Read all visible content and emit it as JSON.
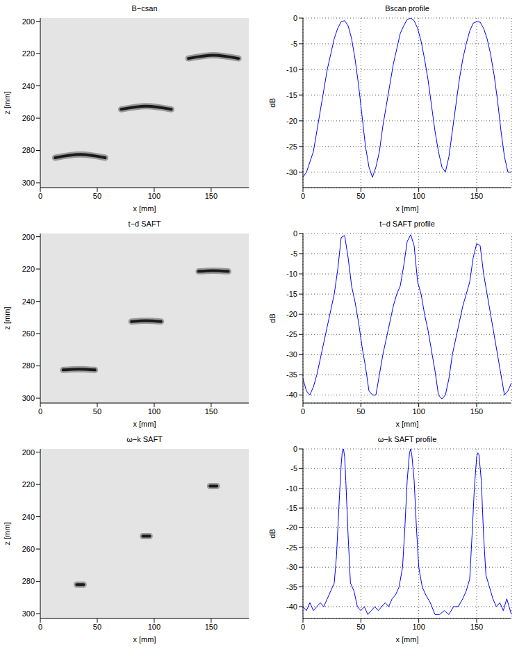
{
  "chart_data": [
    {
      "type": "image",
      "title": "B−csan",
      "x_label": "x [mm]",
      "y_label": "z [mm]",
      "xlim": [
        0,
        183
      ],
      "ylim": [
        198,
        303
      ],
      "xticks": [
        0,
        50,
        100,
        150
      ],
      "yticks": [
        200,
        220,
        240,
        260,
        280,
        300
      ],
      "color": "#1a1a1a",
      "grid": false,
      "reflectors": [
        {
          "x": 35,
          "z": 282.5,
          "half_width": 22,
          "sag": 2
        },
        {
          "x": 93,
          "z": 252.5,
          "half_width": 22,
          "sag": 2
        },
        {
          "x": 152,
          "z": 221,
          "half_width": 22,
          "sag": 2
        }
      ]
    },
    {
      "type": "line",
      "title": "Bscan profile",
      "x_label": "x [mm]",
      "y_label": "dB",
      "xlim": [
        0,
        180
      ],
      "ylim": [
        -33,
        0
      ],
      "xticks": [
        0,
        50,
        100,
        150
      ],
      "yticks": [
        -30,
        -25,
        -20,
        -15,
        -10,
        -5,
        0
      ],
      "grid": true,
      "color": "#0000ff",
      "x": [
        0,
        3,
        6,
        9,
        12,
        15,
        18,
        21,
        24,
        27,
        30,
        33,
        36,
        39,
        42,
        45,
        48,
        51,
        54,
        57,
        60,
        63,
        66,
        69,
        72,
        75,
        78,
        81,
        84,
        87,
        90,
        93,
        96,
        99,
        102,
        105,
        108,
        111,
        114,
        117,
        120,
        123,
        126,
        129,
        132,
        135,
        138,
        141,
        144,
        147,
        150,
        153,
        156,
        159,
        162,
        165,
        168,
        171,
        174,
        177,
        180
      ],
      "values": [
        -31,
        -30,
        -28,
        -26,
        -22,
        -18,
        -14,
        -10,
        -7,
        -4,
        -2,
        -0.7,
        -0.5,
        -1.5,
        -4,
        -8,
        -13,
        -19,
        -25,
        -29,
        -31,
        -29,
        -26,
        -21,
        -17,
        -13,
        -9,
        -6,
        -3,
        -1.5,
        -0.3,
        0,
        -0.5,
        -2,
        -4.5,
        -8,
        -12,
        -17,
        -22,
        -26,
        -29,
        -30,
        -27,
        -22,
        -17,
        -12,
        -8,
        -5,
        -2.5,
        -1,
        -0.7,
        -0.8,
        -2,
        -4,
        -7,
        -11,
        -16,
        -22,
        -27,
        -30,
        -30
      ]
    },
    {
      "type": "image",
      "title": "t−d SAFT",
      "x_label": "x [mm]",
      "y_label": "z [mm]",
      "xlim": [
        0,
        183
      ],
      "ylim": [
        198,
        303
      ],
      "xticks": [
        0,
        50,
        100,
        150
      ],
      "yticks": [
        200,
        220,
        240,
        260,
        280,
        300
      ],
      "color": "#1a1a1a",
      "grid": false,
      "reflectors": [
        {
          "x": 34,
          "z": 282,
          "half_width": 14,
          "sag": 0.5
        },
        {
          "x": 93,
          "z": 252,
          "half_width": 13,
          "sag": 0.5
        },
        {
          "x": 152,
          "z": 221,
          "half_width": 13,
          "sag": 0.5
        }
      ]
    },
    {
      "type": "line",
      "title": "t−d SAFT profile",
      "x_label": "x [mm]",
      "y_label": "dB",
      "xlim": [
        0,
        180
      ],
      "ylim": [
        -42,
        0
      ],
      "xticks": [
        0,
        50,
        100,
        150
      ],
      "yticks": [
        -40,
        -35,
        -30,
        -25,
        -20,
        -15,
        -10,
        -5,
        0
      ],
      "grid": true,
      "color": "#0000ff",
      "x": [
        0,
        3,
        6,
        9,
        12,
        15,
        18,
        21,
        24,
        27,
        30,
        33,
        36,
        39,
        42,
        45,
        48,
        51,
        54,
        57,
        60,
        63,
        66,
        69,
        72,
        75,
        78,
        81,
        84,
        87,
        90,
        93,
        96,
        99,
        102,
        105,
        108,
        111,
        114,
        117,
        120,
        123,
        126,
        129,
        132,
        135,
        138,
        141,
        144,
        147,
        150,
        153,
        156,
        159,
        162,
        165,
        168,
        171,
        174,
        177,
        180
      ],
      "values": [
        -36,
        -39,
        -40,
        -38,
        -35,
        -31,
        -27,
        -23,
        -19,
        -15,
        -9,
        -1,
        -0.5,
        -6,
        -13,
        -17,
        -22,
        -28,
        -33,
        -39,
        -40,
        -40,
        -35,
        -30,
        -26,
        -22,
        -18,
        -15,
        -13,
        -8,
        -2,
        -0.3,
        -3,
        -12,
        -15,
        -20,
        -24,
        -29,
        -34,
        -40,
        -41,
        -40,
        -36,
        -30,
        -26,
        -22,
        -18,
        -15,
        -12,
        -6,
        -2.5,
        -3,
        -10,
        -15,
        -20,
        -25,
        -30,
        -35,
        -40,
        -39,
        -37
      ]
    },
    {
      "type": "image",
      "title": "ω−k SAFT",
      "x_label": "x [mm]",
      "y_label": "z [mm]",
      "xlim": [
        0,
        183
      ],
      "ylim": [
        198,
        303
      ],
      "xticks": [
        0,
        50,
        100,
        150
      ],
      "yticks": [
        200,
        220,
        240,
        260,
        280,
        300
      ],
      "color": "#1a1a1a",
      "grid": false,
      "reflectors": [
        {
          "x": 35,
          "z": 282,
          "half_width": 3,
          "sag": 0
        },
        {
          "x": 93,
          "z": 252,
          "half_width": 3,
          "sag": 0
        },
        {
          "x": 152,
          "z": 221,
          "half_width": 3,
          "sag": 0
        }
      ]
    },
    {
      "type": "line",
      "title": "ω−k SAFT profile",
      "x_label": "x [mm]",
      "y_label": "dB",
      "xlim": [
        0,
        180
      ],
      "ylim": [
        -43,
        0
      ],
      "xticks": [
        0,
        50,
        100,
        150
      ],
      "yticks": [
        -40,
        -35,
        -30,
        -25,
        -20,
        -15,
        -10,
        -5,
        0
      ],
      "grid": true,
      "color": "#0000ff",
      "x": [
        0,
        3,
        6,
        9,
        12,
        15,
        18,
        21,
        24,
        27,
        29,
        31,
        33,
        34,
        35,
        36,
        37,
        39,
        41,
        44,
        47,
        50,
        53,
        56,
        59,
        62,
        65,
        68,
        71,
        74,
        77,
        80,
        83,
        86,
        88,
        90,
        92,
        93,
        94,
        96,
        98,
        100,
        103,
        106,
        110,
        114,
        118,
        122,
        126,
        130,
        134,
        138,
        141,
        144,
        146,
        148,
        150,
        151,
        152,
        154,
        156,
        158,
        161,
        164,
        167,
        170,
        173,
        176,
        180
      ],
      "values": [
        -40,
        -41,
        -39,
        -41,
        -40,
        -39,
        -40,
        -38,
        -36,
        -34,
        -27,
        -15,
        -4,
        -0.5,
        0,
        -2,
        -8,
        -22,
        -34,
        -36,
        -40,
        -41,
        -40,
        -42,
        -41,
        -40,
        -41,
        -40,
        -39,
        -40,
        -38,
        -37,
        -35,
        -30,
        -20,
        -8,
        -1,
        0,
        -1.5,
        -8,
        -20,
        -30,
        -35,
        -37,
        -39,
        -42,
        -42,
        -41,
        -42,
        -40,
        -40,
        -38,
        -36,
        -33,
        -22,
        -10,
        -2,
        -1,
        -1.5,
        -8,
        -22,
        -32,
        -35,
        -38,
        -40,
        -39,
        -41,
        -38,
        -42
      ]
    }
  ]
}
